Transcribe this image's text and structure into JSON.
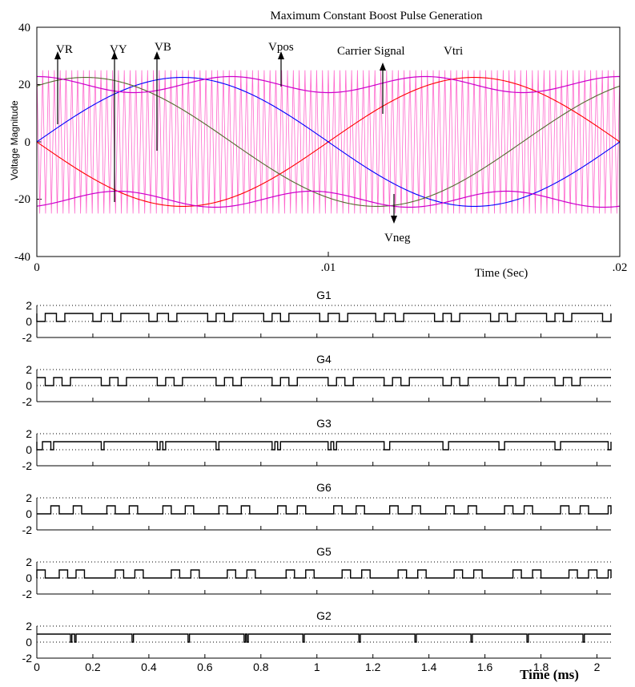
{
  "top_chart": {
    "title": "Maximum Constant Boost Pulse Generation",
    "ylabel": "Voltage Magnitude",
    "xlabel": "Time (Sec)",
    "y_ticks": [
      "40",
      "20",
      "0",
      "-20",
      "-40"
    ],
    "x_ticks": [
      "0",
      ".01",
      ".02"
    ],
    "annotations": {
      "vr": "VR",
      "vy": "VY",
      "vb": "VB",
      "vpos": "Vpos",
      "carrier": "Carrier Signal",
      "vtri": "Vtri",
      "vneg": "Vneg"
    }
  },
  "gate_panels": {
    "titles": [
      "G1",
      "G4",
      "G3",
      "G6",
      "G5",
      "G2"
    ],
    "y_ticks": [
      "2",
      "0",
      "-2"
    ],
    "x_ticks": [
      "0",
      "0.2",
      "0.4",
      "0.6",
      "0.8",
      "1",
      "1.2",
      "1.4",
      "1.6",
      "1.8",
      "2"
    ],
    "xlabel": "Time (ms)"
  },
  "colors": {
    "carrier": "#ff66cc",
    "vr": "#ff0000",
    "vy": "#0000ff",
    "vb": "#556b2f",
    "envelope": "#cc00cc",
    "axis": "#000000"
  },
  "chart_data": [
    {
      "type": "line",
      "title": "Maximum Constant Boost Pulse Generation",
      "xlabel": "Time (Sec)",
      "ylabel": "Voltage Magnitude",
      "xlim": [
        0,
        0.02
      ],
      "ylim": [
        -40,
        40
      ],
      "grid": false,
      "amplitude": 22.5,
      "frequency_hz": 50,
      "series": [
        {
          "name": "VR",
          "phase_deg": 180,
          "color": "#ff0000"
        },
        {
          "name": "VY",
          "phase_deg": 0,
          "color": "#0000ff"
        },
        {
          "name": "VB",
          "phase_deg": 60,
          "color": "#556b2f"
        },
        {
          "name": "Vpos",
          "formula": "max of three-phase references + third harmonic",
          "color": "#cc00cc"
        },
        {
          "name": "Vneg",
          "formula": "min of three-phase references + third harmonic",
          "color": "#cc00cc"
        },
        {
          "name": "Vtri",
          "type": "triangular carrier",
          "amplitude": 25,
          "cycles": 100,
          "color": "#ff66cc"
        }
      ]
    },
    {
      "type": "line",
      "title": "G1",
      "xlabel": "Time (ms)",
      "xlim": [
        0,
        2.05
      ],
      "ylim": [
        -2,
        2
      ],
      "high": 1,
      "low": 0,
      "pulses": [
        [
          0.0,
          0.03
        ],
        [
          0.2,
          0.23
        ],
        [
          0.4,
          0.43
        ],
        [
          0.61,
          0.64
        ],
        [
          0.81,
          0.84
        ],
        [
          1.01,
          1.04
        ],
        [
          1.21,
          1.24
        ],
        [
          1.42,
          1.45
        ],
        [
          1.62,
          1.65
        ],
        [
          1.82,
          1.85
        ],
        [
          2.02,
          2.05
        ],
        [
          0.07,
          0.1
        ],
        [
          0.27,
          0.3
        ],
        [
          0.47,
          0.5
        ],
        [
          0.67,
          0.7
        ],
        [
          0.87,
          0.9
        ],
        [
          1.08,
          1.11
        ],
        [
          1.28,
          1.31
        ],
        [
          1.48,
          1.51
        ],
        [
          1.68,
          1.71
        ],
        [
          1.88,
          1.91
        ]
      ],
      "pulse_polarity": "low"
    },
    {
      "type": "line",
      "title": "G4",
      "xlabel": "Time (ms)",
      "xlim": [
        0,
        2.05
      ],
      "ylim": [
        -2,
        2
      ],
      "high": 1,
      "low": 0,
      "pulses": [
        [
          0.03,
          0.06
        ],
        [
          0.09,
          0.12
        ],
        [
          0.23,
          0.26
        ],
        [
          0.29,
          0.32
        ],
        [
          0.43,
          0.46
        ],
        [
          0.49,
          0.52
        ],
        [
          0.64,
          0.67
        ],
        [
          0.7,
          0.73
        ],
        [
          0.84,
          0.87
        ],
        [
          0.9,
          0.93
        ],
        [
          1.04,
          1.07
        ],
        [
          1.1,
          1.13
        ],
        [
          1.24,
          1.27
        ],
        [
          1.3,
          1.33
        ],
        [
          1.45,
          1.48
        ],
        [
          1.51,
          1.54
        ],
        [
          1.65,
          1.68
        ],
        [
          1.71,
          1.74
        ],
        [
          1.85,
          1.88
        ],
        [
          1.91,
          1.94
        ]
      ],
      "pulse_polarity": "low"
    },
    {
      "type": "line",
      "title": "G3",
      "xlabel": "Time (ms)",
      "xlim": [
        0,
        2.05
      ],
      "ylim": [
        -2,
        2
      ],
      "high": 1,
      "low": 0,
      "pulses": [
        [
          0.0,
          0.02
        ],
        [
          0.05,
          0.06
        ],
        [
          0.23,
          0.24
        ],
        [
          0.43,
          0.44
        ],
        [
          0.45,
          0.46
        ],
        [
          0.64,
          0.65
        ],
        [
          0.84,
          0.85
        ],
        [
          0.86,
          0.87
        ],
        [
          1.04,
          1.05
        ],
        [
          1.06,
          1.07
        ],
        [
          1.24,
          1.26
        ],
        [
          1.45,
          1.47
        ],
        [
          1.65,
          1.67
        ],
        [
          1.85,
          1.87
        ],
        [
          2.04,
          2.05
        ]
      ],
      "pulse_polarity": "high_with_dips"
    },
    {
      "type": "line",
      "title": "G6",
      "xlabel": "Time (ms)",
      "xlim": [
        0,
        2.05
      ],
      "ylim": [
        -2,
        2
      ],
      "high": 1,
      "low": 0,
      "pulses": [
        [
          0.05,
          0.08
        ],
        [
          0.25,
          0.28
        ],
        [
          0.45,
          0.48
        ],
        [
          0.65,
          0.68
        ],
        [
          0.86,
          0.89
        ],
        [
          1.06,
          1.09
        ],
        [
          1.26,
          1.29
        ],
        [
          1.46,
          1.49
        ],
        [
          1.67,
          1.7
        ],
        [
          1.87,
          1.9
        ],
        [
          0.13,
          0.16
        ],
        [
          0.33,
          0.36
        ],
        [
          0.53,
          0.56
        ],
        [
          0.73,
          0.76
        ],
        [
          0.93,
          0.96
        ],
        [
          1.14,
          1.17
        ],
        [
          1.34,
          1.37
        ],
        [
          1.54,
          1.57
        ],
        [
          1.74,
          1.77
        ],
        [
          1.94,
          1.97
        ],
        [
          2.04,
          2.05
        ]
      ],
      "pulse_polarity": "high"
    },
    {
      "type": "line",
      "title": "G5",
      "xlabel": "Time (ms)",
      "xlim": [
        0,
        2.05
      ],
      "ylim": [
        -2,
        2
      ],
      "high": 1,
      "low": 0,
      "pulses": [
        [
          0.0,
          0.03
        ],
        [
          0.08,
          0.11
        ],
        [
          0.14,
          0.17
        ],
        [
          0.28,
          0.31
        ],
        [
          0.35,
          0.38
        ],
        [
          0.48,
          0.51
        ],
        [
          0.55,
          0.58
        ],
        [
          0.68,
          0.71
        ],
        [
          0.75,
          0.78
        ],
        [
          0.89,
          0.92
        ],
        [
          0.96,
          0.99
        ],
        [
          1.09,
          1.12
        ],
        [
          1.16,
          1.19
        ],
        [
          1.29,
          1.32
        ],
        [
          1.36,
          1.39
        ],
        [
          1.49,
          1.52
        ],
        [
          1.56,
          1.59
        ],
        [
          1.7,
          1.73
        ],
        [
          1.77,
          1.8
        ],
        [
          1.9,
          1.93
        ],
        [
          1.97,
          2.0
        ],
        [
          2.04,
          2.05
        ]
      ],
      "pulse_polarity": "high"
    },
    {
      "type": "line",
      "title": "G2",
      "xlabel": "Time (ms)",
      "xlim": [
        0,
        2.05
      ],
      "ylim": [
        -2,
        2
      ],
      "high": 1,
      "low": 0,
      "pulses": [
        [
          0.12,
          0.125
        ],
        [
          0.135,
          0.14
        ],
        [
          0.34,
          0.345
        ],
        [
          0.54,
          0.545
        ],
        [
          0.74,
          0.745
        ],
        [
          0.75,
          0.755
        ],
        [
          0.95,
          0.955
        ],
        [
          1.15,
          1.155
        ],
        [
          1.35,
          1.355
        ],
        [
          1.55,
          1.555
        ],
        [
          1.75,
          1.755
        ],
        [
          1.95,
          1.955
        ]
      ],
      "pulse_polarity": "high_with_dips"
    }
  ]
}
